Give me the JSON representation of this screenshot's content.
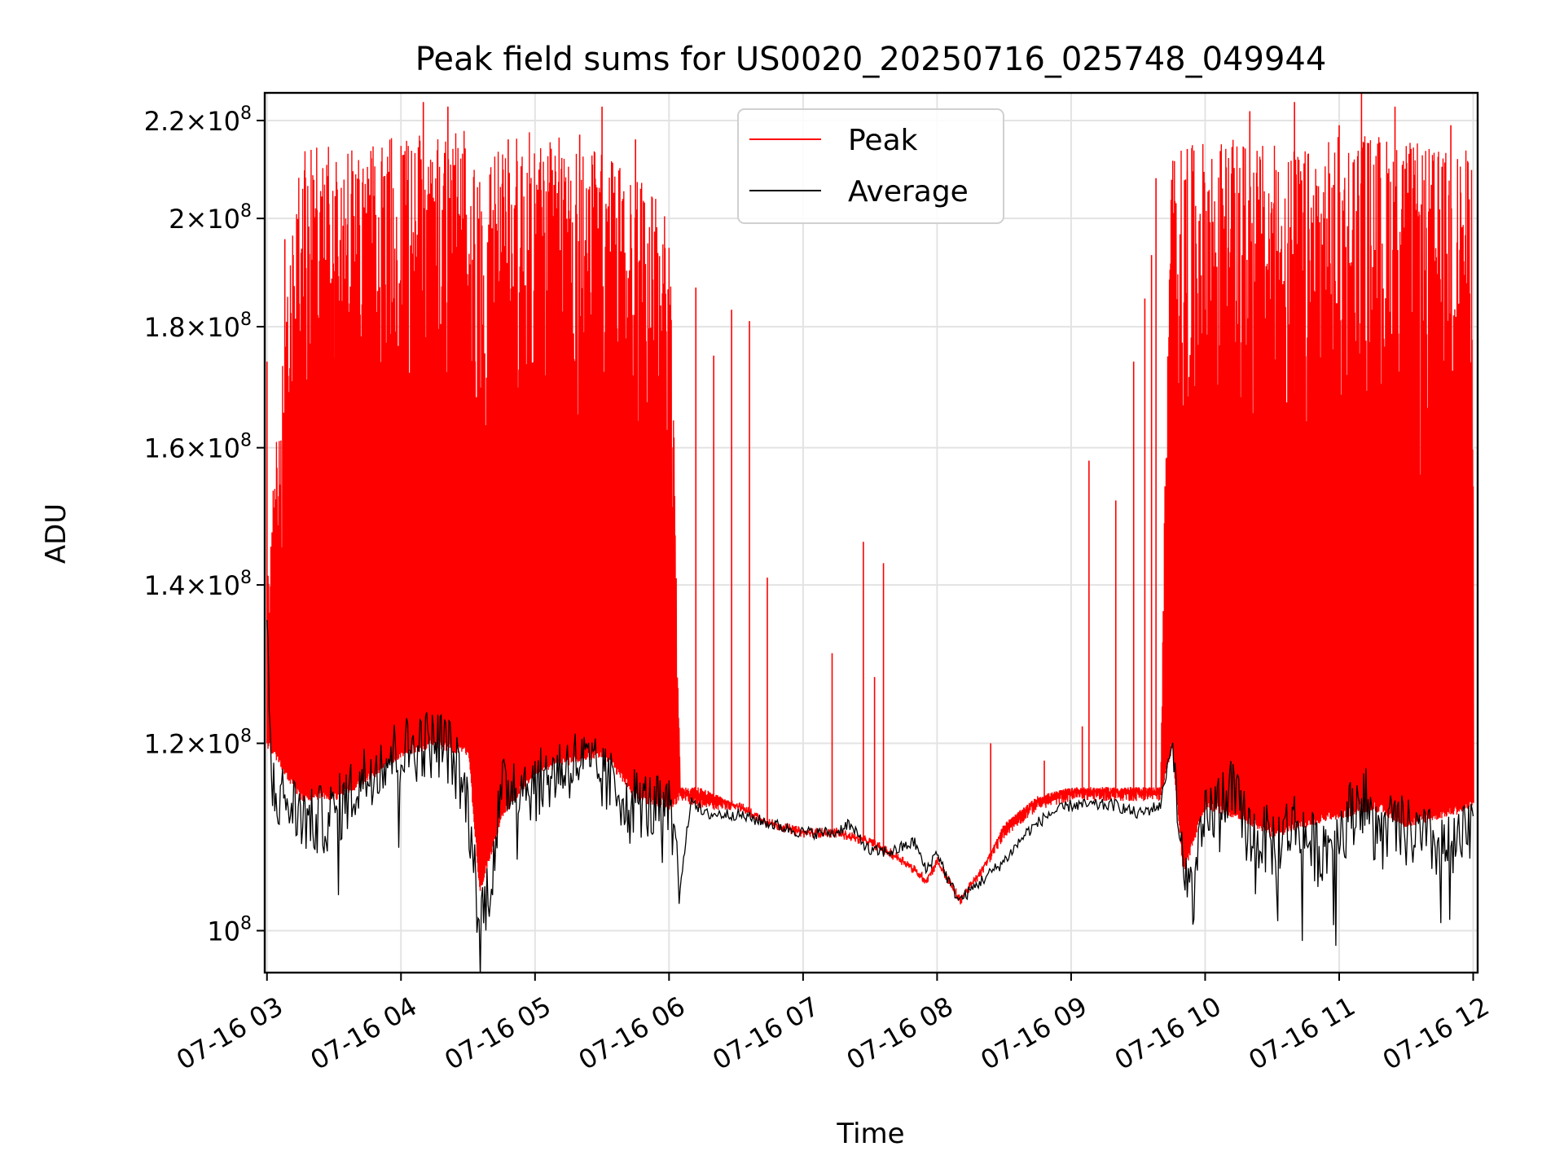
{
  "chart_data": {
    "type": "line",
    "title": "Peak field sums for US0020_20250716_025748_049944",
    "xlabel": "Time",
    "ylabel": "ADU",
    "xlim": [
      "07-16 02:59",
      "07-16 12:02"
    ],
    "ylim": [
      96000000,
      226000000
    ],
    "yscale": "log",
    "grid": true,
    "legend": {
      "placement": "top-center",
      "entries": [
        "Peak",
        "Average"
      ]
    },
    "x_ticks": [
      "07-16 03",
      "07-16 04",
      "07-16 05",
      "07-16 06",
      "07-16 07",
      "07-16 08",
      "07-16 09",
      "07-16 10",
      "07-16 11",
      "07-16 12"
    ],
    "y_ticks": [
      {
        "value": 100000000,
        "mantissa": "",
        "base": "10",
        "exp": "8"
      },
      {
        "value": 120000000,
        "mantissa": "1.2",
        "base": "10",
        "exp": "8"
      },
      {
        "value": 140000000,
        "mantissa": "1.4",
        "base": "10",
        "exp": "8"
      },
      {
        "value": 160000000,
        "mantissa": "1.6",
        "base": "10",
        "exp": "8"
      },
      {
        "value": 180000000,
        "mantissa": "1.8",
        "base": "10",
        "exp": "8"
      },
      {
        "value": 200000000,
        "mantissa": "2",
        "base": "10",
        "exp": "8"
      },
      {
        "value": 220000000,
        "mantissa": "2.2",
        "base": "10",
        "exp": "8"
      }
    ],
    "series": [
      {
        "name": "Peak",
        "color": "#ff0000",
        "x": [
          "03:00",
          "03:15",
          "03:30",
          "03:45",
          "04:00",
          "04:15",
          "04:30",
          "04:35",
          "04:45",
          "05:00",
          "05:15",
          "05:30",
          "05:45",
          "06:00",
          "06:05",
          "06:15",
          "06:30",
          "06:45",
          "07:00",
          "07:15",
          "07:30",
          "07:45",
          "07:55",
          "08:00",
          "08:10",
          "08:20",
          "08:30",
          "08:45",
          "09:00",
          "09:15",
          "09:30",
          "09:40",
          "09:45",
          "09:50",
          "10:00",
          "10:15",
          "10:30",
          "10:45",
          "11:00",
          "11:15",
          "11:30",
          "11:45",
          "12:00"
        ],
        "band_low": [
          120000000,
          114000000,
          114000000,
          116000000,
          119000000,
          120000000,
          119000000,
          104000000,
          112000000,
          117000000,
          118000000,
          119000000,
          114000000,
          113000000,
          114000000,
          113000000,
          113000000,
          111000000,
          110000000,
          110000000,
          109000000,
          107000000,
          105000000,
          107000000,
          103000000,
          106000000,
          110000000,
          113000000,
          114000000,
          114000000,
          114000000,
          114000000,
          120000000,
          106000000,
          113000000,
          112000000,
          110000000,
          111000000,
          112000000,
          113000000,
          111000000,
          112000000,
          113000000
        ],
        "band_high": [
          140000000,
          214000000,
          215000000,
          214000000,
          218000000,
          220000000,
          218000000,
          210000000,
          216000000,
          218000000,
          216000000,
          214000000,
          210000000,
          200000000,
          115000000,
          115000000,
          113000000,
          111000000,
          110000000,
          110000000,
          109000000,
          107000000,
          105000000,
          107000000,
          103000000,
          106000000,
          111000000,
          114000000,
          115000000,
          115000000,
          115000000,
          115000000,
          215000000,
          214000000,
          216000000,
          216000000,
          215000000,
          214000000,
          217000000,
          218000000,
          216000000,
          214000000,
          214000000
        ],
        "spikes": [
          [
            "03:00",
            174000000
          ],
          [
            "03:08",
            196000000
          ],
          [
            "03:30",
            190000000
          ],
          [
            "03:55",
            200000000
          ],
          [
            "04:10",
            224000000
          ],
          [
            "04:21",
            223000000
          ],
          [
            "04:48",
            216000000
          ],
          [
            "05:20",
            217000000
          ],
          [
            "05:30",
            223000000
          ],
          [
            "05:45",
            216000000
          ],
          [
            "06:12",
            187000000
          ],
          [
            "06:20",
            175000000
          ],
          [
            "06:28",
            183000000
          ],
          [
            "06:36",
            181000000
          ],
          [
            "06:44",
            141000000
          ],
          [
            "07:13",
            131000000
          ],
          [
            "07:27",
            146000000
          ],
          [
            "07:32",
            128000000
          ],
          [
            "07:36",
            143000000
          ],
          [
            "08:24",
            120000000
          ],
          [
            "08:48",
            118000000
          ],
          [
            "09:05",
            122000000
          ],
          [
            "09:08",
            158000000
          ],
          [
            "09:20",
            152000000
          ],
          [
            "09:28",
            174000000
          ],
          [
            "09:33",
            185000000
          ],
          [
            "09:36",
            193000000
          ],
          [
            "09:38",
            208000000
          ],
          [
            "09:52",
            214000000
          ],
          [
            "10:20",
            222000000
          ],
          [
            "10:40",
            224000000
          ],
          [
            "11:00",
            219000000
          ],
          [
            "11:10",
            226000000
          ],
          [
            "11:25",
            223000000
          ],
          [
            "11:50",
            219000000
          ]
        ]
      },
      {
        "name": "Average",
        "color": "#000000",
        "x": [
          "03:00",
          "03:02",
          "03:10",
          "03:20",
          "03:30",
          "03:40",
          "03:50",
          "04:00",
          "04:10",
          "04:20",
          "04:25",
          "04:30",
          "04:35",
          "04:40",
          "04:45",
          "04:50",
          "05:00",
          "05:10",
          "05:20",
          "05:30",
          "05:40",
          "05:50",
          "06:00",
          "06:05",
          "06:10",
          "06:15",
          "06:30",
          "06:45",
          "07:00",
          "07:15",
          "07:20",
          "07:30",
          "07:40",
          "07:50",
          "07:55",
          "08:00",
          "08:05",
          "08:10",
          "08:20",
          "08:25",
          "08:30",
          "08:40",
          "08:50",
          "09:00",
          "09:10",
          "09:20",
          "09:30",
          "09:40",
          "09:45",
          "09:50",
          "09:55",
          "10:00",
          "10:10",
          "10:20",
          "10:30",
          "10:40",
          "10:50",
          "11:00",
          "11:10",
          "11:20",
          "11:30",
          "11:40",
          "11:50",
          "12:00"
        ],
        "y": [
          136000000,
          115000000,
          113000000,
          111000000,
          112000000,
          115000000,
          118000000,
          119000000,
          120000000,
          120000000,
          117000000,
          113000000,
          101000000,
          105000000,
          114000000,
          116000000,
          115000000,
          117000000,
          118000000,
          116000000,
          114000000,
          113000000,
          112000000,
          104000000,
          114000000,
          112000000,
          112000000,
          111000000,
          110000000,
          110000000,
          111000000,
          108000000,
          108000000,
          109000000,
          106000000,
          108000000,
          105000000,
          103000000,
          105000000,
          106000000,
          107000000,
          110000000,
          112000000,
          113000000,
          113000000,
          113000000,
          112000000,
          113000000,
          120000000,
          105000000,
          104000000,
          111000000,
          115000000,
          110000000,
          109000000,
          111000000,
          108000000,
          110000000,
          114000000,
          111000000,
          110000000,
          109000000,
          108000000,
          110000000
        ]
      }
    ]
  }
}
